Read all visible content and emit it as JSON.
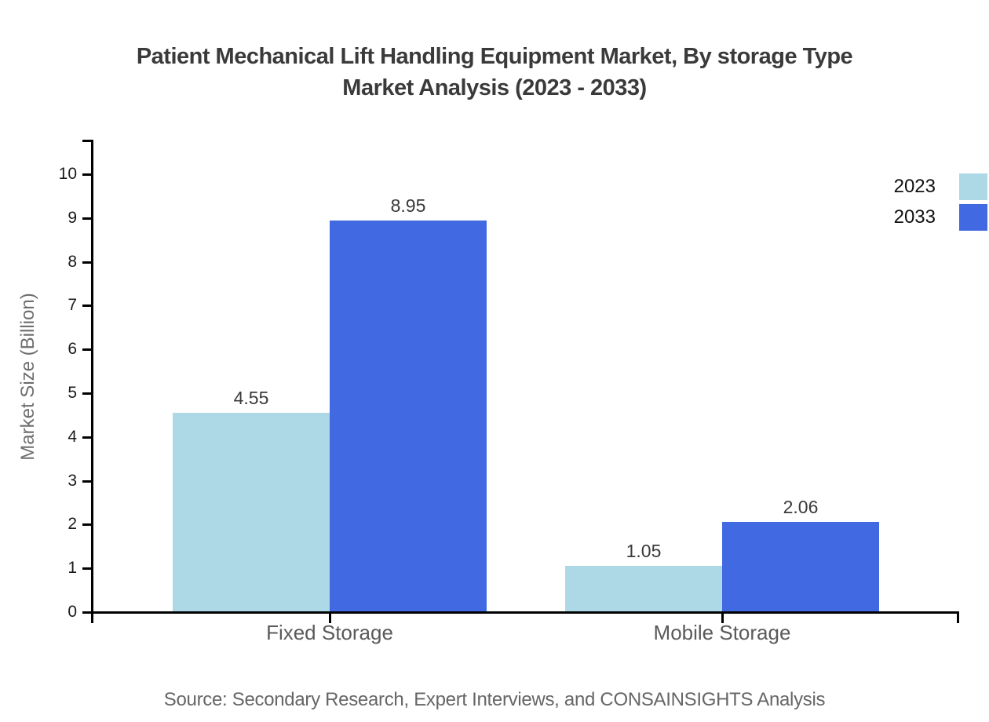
{
  "chart_data": {
    "type": "bar",
    "title": "Patient Mechanical Lift Handling Equipment Market, By storage Type Market Analysis (2023 - 2033)",
    "title_lines": [
      "Patient Mechanical Lift Handling Equipment Market, By storage Type",
      "Market Analysis (2023 - 2033)"
    ],
    "ylabel": "Market Size (Billion)",
    "xlabel": "",
    "categories": [
      "Fixed Storage",
      "Mobile Storage"
    ],
    "series": [
      {
        "name": "2023",
        "color": "#ADD8E6",
        "values": [
          4.55,
          1.05
        ],
        "labels": [
          "4.55",
          "1.05"
        ]
      },
      {
        "name": "2033",
        "color": "#4169E1",
        "values": [
          8.95,
          2.06
        ],
        "labels": [
          "8.95",
          "2.06"
        ]
      }
    ],
    "ylim": [
      0,
      10
    ],
    "yticks": [
      0,
      1,
      2,
      3,
      4,
      5,
      6,
      7,
      8,
      9,
      10
    ],
    "grid": false,
    "legend_position": "top-right",
    "axis_color": "#000000",
    "source": "Source: Secondary Research, Expert Interviews, and CONSAINSIGHTS Analysis"
  }
}
